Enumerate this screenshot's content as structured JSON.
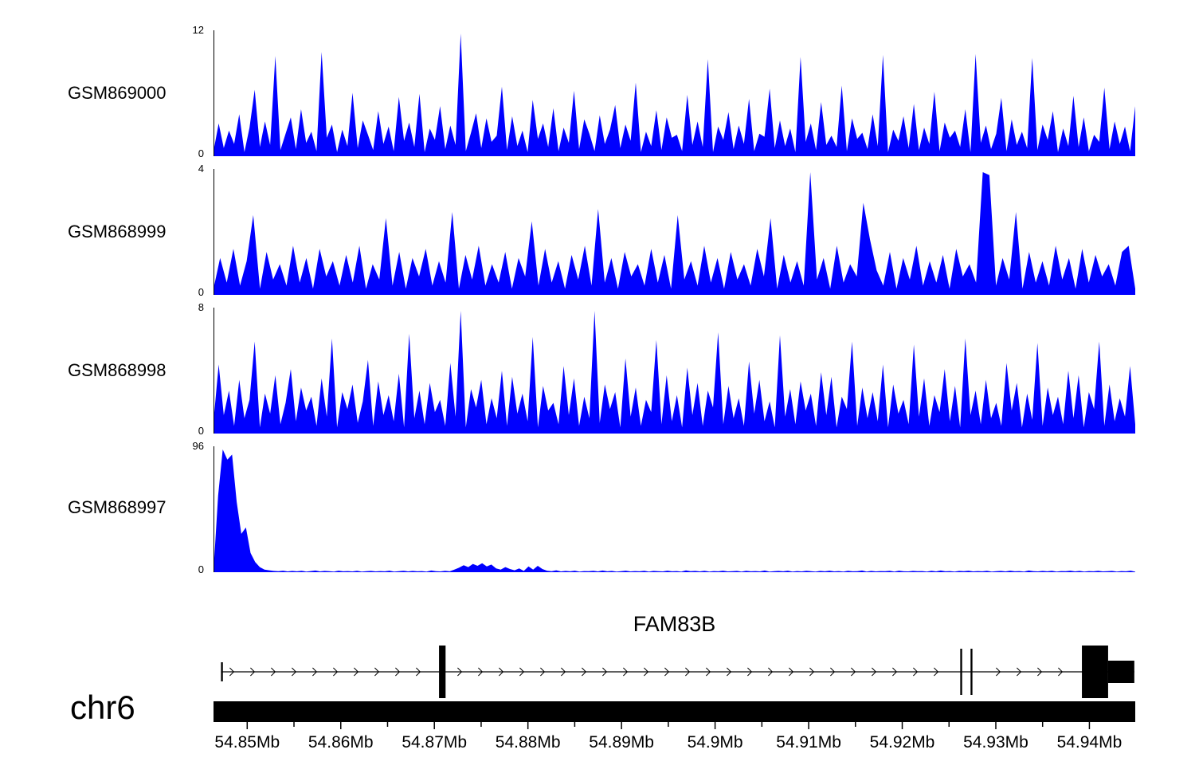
{
  "figure": {
    "background": "#ffffff",
    "signal_color": "#0000ff",
    "axis_color": "#000000"
  },
  "chart_data": {
    "type": "area",
    "title": "",
    "description": "Genome browser coverage view of four GSM samples over chr6 54.85-54.94 Mb spanning the FAM83B gene",
    "x_axis": {
      "unit": "Mb",
      "range_mb": [
        54.8464,
        54.9449
      ],
      "major_ticks": [
        {
          "mb": 54.85,
          "label": "54.85Mb"
        },
        {
          "mb": 54.86,
          "label": "54.86Mb"
        },
        {
          "mb": 54.87,
          "label": "54.87Mb"
        },
        {
          "mb": 54.88,
          "label": "54.88Mb"
        },
        {
          "mb": 54.89,
          "label": "54.89Mb"
        },
        {
          "mb": 54.9,
          "label": "54.9Mb"
        },
        {
          "mb": 54.91,
          "label": "54.91Mb"
        },
        {
          "mb": 54.92,
          "label": "54.92Mb"
        },
        {
          "mb": 54.93,
          "label": "54.93Mb"
        },
        {
          "mb": 54.94,
          "label": "54.94Mb"
        }
      ],
      "minor_ticks_mb": [
        54.855,
        54.865,
        54.875,
        54.885,
        54.895,
        54.905,
        54.915,
        54.925,
        54.935
      ]
    },
    "chromosome": {
      "label": "chr6"
    },
    "gene_track": {
      "name": "FAM83B",
      "strand": "right",
      "start_mb": 54.8472,
      "end_mb": 54.9448,
      "exons": [
        {
          "start_mb": 54.8472,
          "end_mb": 54.8474,
          "type": "small"
        },
        {
          "start_mb": 54.8705,
          "end_mb": 54.8712,
          "type": "tall"
        },
        {
          "start_mb": 54.9262,
          "end_mb": 54.9264,
          "type": "thin"
        },
        {
          "start_mb": 54.9273,
          "end_mb": 54.9275,
          "type": "thin"
        },
        {
          "start_mb": 54.9392,
          "end_mb": 54.942,
          "type": "tall"
        },
        {
          "start_mb": 54.942,
          "end_mb": 54.9448,
          "type": "half"
        }
      ]
    },
    "tracks": [
      {
        "label": "GSM869000",
        "ylim": [
          0,
          12
        ],
        "y_top_label": "12",
        "y_bottom_label": "0",
        "values": [
          0.5,
          3.2,
          0.8,
          2.5,
          1.2,
          4.1,
          0.4,
          2.8,
          6.5,
          0.9,
          3.4,
          1.1,
          9.8,
          0.6,
          2.2,
          3.8,
          0.7,
          4.6,
          1.3,
          2.4,
          0.5,
          10.2,
          1.8,
          3.1,
          0.4,
          2.6,
          1.0,
          6.2,
          0.8,
          3.5,
          2.1,
          0.6,
          4.4,
          1.2,
          2.9,
          0.5,
          5.8,
          1.5,
          3.3,
          0.9,
          6.1,
          0.4,
          2.7,
          1.6,
          4.9,
          0.7,
          3.0,
          1.1,
          12.0,
          0.5,
          2.3,
          4.2,
          0.8,
          3.7,
          1.4,
          2.0,
          6.8,
          0.6,
          3.9,
          1.0,
          2.5,
          0.4,
          5.5,
          1.7,
          3.2,
          0.9,
          4.7,
          0.5,
          2.8,
          1.3,
          6.4,
          0.7,
          3.6,
          2.2,
          0.5,
          4.0,
          1.2,
          2.6,
          5.0,
          0.8,
          3.1,
          1.5,
          7.2,
          0.4,
          2.4,
          1.0,
          4.5,
          0.6,
          3.8,
          1.8,
          2.1,
          0.5,
          6.0,
          1.1,
          3.4,
          0.9,
          9.5,
          0.4,
          2.9,
          1.6,
          4.3,
          0.7,
          3.0,
          1.2,
          5.6,
          0.5,
          2.2,
          1.9,
          6.6,
          0.8,
          3.5,
          1.0,
          2.7,
          0.4,
          9.7,
          1.4,
          3.2,
          0.6,
          5.3,
          1.1,
          2.0,
          0.9,
          6.9,
          0.5,
          3.7,
          1.7,
          2.3,
          0.7,
          4.1,
          1.0,
          9.9,
          0.4,
          2.6,
          1.5,
          3.9,
          0.8,
          5.1,
          0.6,
          2.8,
          1.2,
          6.3,
          0.5,
          3.3,
          1.8,
          2.5,
          0.9,
          4.6,
          0.4,
          10.0,
          1.3,
          3.0,
          0.7,
          2.2,
          5.7,
          0.5,
          3.6,
          1.1,
          2.4,
          0.8,
          9.6,
          0.6,
          3.1,
          1.6,
          4.4,
          0.4,
          2.7,
          1.0,
          5.9,
          0.9,
          3.8,
          0.5,
          2.1,
          1.4,
          6.7,
          0.7,
          3.4,
          1.2,
          2.9,
          0.5,
          4.9
        ]
      },
      {
        "label": "GSM868999",
        "ylim": [
          0,
          4
        ],
        "y_top_label": "4",
        "y_bottom_label": "0",
        "values": [
          0.2,
          1.2,
          0.4,
          1.5,
          0.3,
          1.1,
          2.6,
          0.2,
          1.4,
          0.5,
          1.0,
          0.3,
          1.6,
          0.4,
          1.2,
          0.2,
          1.5,
          0.6,
          1.1,
          0.3,
          1.3,
          0.4,
          1.6,
          0.2,
          1.0,
          0.5,
          2.5,
          0.3,
          1.4,
          0.2,
          1.2,
          0.6,
          1.5,
          0.3,
          1.1,
          0.4,
          2.7,
          0.2,
          1.3,
          0.5,
          1.6,
          0.3,
          1.0,
          0.4,
          1.4,
          0.2,
          1.2,
          0.6,
          2.4,
          0.3,
          1.5,
          0.4,
          1.1,
          0.2,
          1.3,
          0.5,
          1.6,
          0.3,
          2.8,
          0.4,
          1.2,
          0.2,
          1.4,
          0.6,
          1.0,
          0.3,
          1.5,
          0.4,
          1.3,
          0.2,
          2.6,
          0.5,
          1.1,
          0.3,
          1.6,
          0.4,
          1.2,
          0.2,
          1.4,
          0.5,
          1.0,
          0.3,
          1.5,
          0.6,
          2.5,
          0.2,
          1.3,
          0.4,
          1.1,
          0.3,
          4.0,
          0.5,
          1.2,
          0.2,
          1.6,
          0.4,
          1.0,
          0.6,
          3.0,
          1.8,
          0.8,
          0.3,
          1.4,
          0.2,
          1.2,
          0.5,
          1.6,
          0.3,
          1.1,
          0.4,
          1.3,
          0.2,
          1.5,
          0.6,
          1.0,
          0.4,
          4.0,
          3.9,
          0.3,
          1.2,
          0.5,
          2.7,
          0.2,
          1.4,
          0.4,
          1.1,
          0.3,
          1.6,
          0.5,
          1.2,
          0.2,
          1.5,
          0.4,
          1.3,
          0.6,
          1.0,
          0.3,
          1.4,
          1.6,
          0.2
        ]
      },
      {
        "label": "GSM868998",
        "ylim": [
          0,
          8
        ],
        "y_top_label": "8",
        "y_bottom_label": "0",
        "values": [
          0.8,
          4.5,
          1.2,
          2.8,
          0.5,
          3.5,
          1.0,
          2.2,
          6.0,
          0.4,
          2.6,
          1.3,
          3.8,
          0.6,
          2.0,
          4.2,
          0.8,
          3.0,
          1.5,
          2.4,
          0.5,
          3.6,
          1.1,
          6.2,
          0.4,
          2.7,
          1.6,
          3.2,
          0.7,
          2.1,
          4.8,
          0.5,
          3.4,
          1.2,
          2.5,
          0.8,
          3.9,
          0.4,
          6.5,
          1.0,
          2.8,
          0.6,
          3.3,
          1.4,
          2.2,
          0.5,
          4.6,
          1.1,
          8.0,
          0.4,
          2.9,
          1.7,
          3.5,
          0.6,
          2.3,
          1.0,
          4.1,
          0.5,
          3.7,
          1.3,
          2.6,
          0.8,
          6.3,
          0.4,
          3.1,
          1.5,
          2.0,
          0.6,
          4.4,
          1.2,
          3.6,
          0.5,
          2.4,
          1.0,
          8.0,
          0.7,
          3.2,
          1.6,
          2.7,
          0.4,
          4.9,
          1.1,
          3.0,
          0.5,
          2.2,
          1.4,
          6.1,
          0.6,
          3.8,
          0.8,
          2.5,
          0.4,
          4.3,
          1.2,
          3.3,
          0.5,
          2.8,
          1.7,
          6.6,
          0.6,
          3.1,
          1.0,
          2.3,
          0.5,
          4.7,
          1.3,
          3.5,
          0.8,
          2.1,
          0.4,
          6.4,
          1.1,
          2.9,
          0.6,
          3.4,
          1.5,
          2.6,
          0.5,
          4.0,
          1.2,
          3.7,
          0.4,
          2.4,
          1.6,
          6.0,
          0.5,
          3.0,
          1.0,
          2.7,
          0.8,
          4.5,
          0.4,
          3.2,
          1.3,
          2.2,
          0.6,
          5.8,
          1.1,
          3.6,
          0.5,
          2.5,
          1.4,
          4.2,
          0.8,
          3.1,
          0.4,
          6.2,
          1.2,
          2.8,
          0.6,
          3.5,
          1.0,
          2.0,
          0.5,
          4.6,
          1.5,
          3.3,
          0.4,
          2.6,
          0.9,
          5.9,
          0.5,
          3.0,
          1.2,
          2.4,
          0.6,
          4.1,
          1.0,
          3.8,
          0.4,
          2.7,
          1.6,
          6.0,
          0.5,
          3.2,
          0.8,
          2.3,
          1.1,
          4.4,
          0.6
        ]
      },
      {
        "label": "GSM868997",
        "ylim": [
          0,
          96
        ],
        "y_top_label": "96",
        "y_bottom_label": "0",
        "values": [
          1,
          60,
          96,
          88,
          92,
          55,
          30,
          35,
          15,
          8,
          4,
          2,
          1.5,
          1,
          0.8,
          1.2,
          0.6,
          1,
          0.7,
          1.1,
          0.5,
          0.9,
          1.3,
          0.6,
          1,
          0.8,
          0.5,
          1.2,
          0.7,
          0.9,
          0.6,
          1.1,
          0.5,
          0.8,
          1.0,
          0.6,
          0.9,
          0.7,
          1.2,
          0.5,
          0.8,
          1.1,
          0.6,
          1.0,
          0.7,
          0.9,
          0.5,
          1.3,
          0.8,
          0.6,
          1.1,
          0.7,
          2.0,
          3.5,
          5.5,
          4.0,
          6.5,
          5.0,
          7.0,
          4.5,
          6.0,
          3.0,
          2.0,
          4.0,
          2.5,
          1.5,
          3.0,
          1.0,
          4.5,
          2.0,
          5.0,
          2.5,
          1.2,
          0.8,
          1.5,
          0.6,
          1.0,
          0.7,
          1.2,
          0.5,
          0.9,
          0.8,
          1.1,
          0.6,
          1.3,
          0.7,
          1.0,
          0.5,
          0.8,
          1.2,
          0.6,
          0.9,
          0.7,
          1.1,
          0.5,
          1.0,
          0.8,
          0.6,
          1.2,
          0.7,
          0.9,
          0.5,
          1.4,
          0.8,
          1.0,
          0.6,
          1.1,
          0.5,
          0.9,
          0.7,
          1.2,
          0.6,
          0.8,
          1.0,
          0.5,
          1.1,
          0.7,
          0.9,
          0.6,
          1.3,
          0.5,
          0.8,
          1.0,
          0.7,
          1.2,
          0.5,
          0.9,
          0.6,
          1.1,
          0.8,
          0.5,
          1.0,
          0.7,
          1.2,
          0.6,
          0.9,
          0.5,
          1.1,
          0.7,
          0.8,
          1.3,
          0.5,
          1.0,
          0.6,
          0.9,
          0.8,
          1.1,
          0.5,
          1.2,
          0.7,
          0.6,
          1.0,
          0.8,
          0.9,
          0.5,
          1.1,
          0.6,
          1.3,
          0.7,
          0.9,
          0.5,
          1.0,
          0.8,
          1.2,
          0.6,
          0.9,
          0.7,
          1.1,
          0.5,
          0.8,
          1.0,
          0.6,
          1.2,
          0.7,
          0.9,
          0.5,
          1.3,
          0.8,
          0.6,
          1.0,
          0.7,
          1.1,
          0.5,
          0.9,
          0.8,
          1.2,
          0.6,
          1.0,
          0.5,
          0.9,
          0.7,
          1.1,
          0.6,
          0.8,
          1.0,
          0.5,
          0.9,
          0.7,
          1.2,
          0.4
        ]
      }
    ]
  }
}
